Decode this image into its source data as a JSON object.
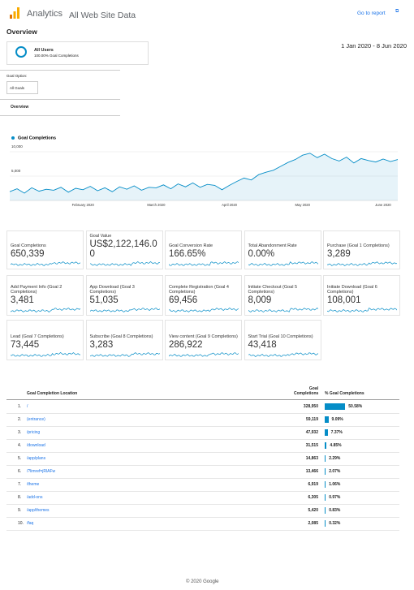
{
  "header": {
    "product": "Analytics",
    "property": "All Web Site Data",
    "link": "Go to report"
  },
  "page_title": "Overview",
  "segment": {
    "name": "All Users",
    "detail": "100.00% Goal Completions"
  },
  "date_range": "1 Jan 2020 - 8 Jun 2020",
  "goal_option": {
    "label": "Goal Option:",
    "value": "All Goals"
  },
  "tab": "Overview",
  "chart_data": {
    "type": "line",
    "categories": [
      null,
      null,
      null,
      null,
      null,
      null,
      null,
      null,
      null,
      null,
      "February 2020",
      null,
      null,
      null,
      null,
      null,
      null,
      null,
      null,
      null,
      "March 2020",
      null,
      null,
      null,
      null,
      null,
      null,
      null,
      null,
      null,
      "April 2020",
      null,
      null,
      null,
      null,
      null,
      null,
      null,
      null,
      null,
      "May 2020",
      null,
      null,
      null,
      null,
      null,
      null,
      null,
      null,
      null,
      null,
      "June 2020",
      null,
      null
    ],
    "series": [
      {
        "name": "Goal Completions",
        "color": "#058dc7",
        "values": [
          1800,
          2400,
          1500,
          2600,
          1900,
          2300,
          2100,
          2700,
          1700,
          2500,
          2200,
          2900,
          2000,
          2600,
          1800,
          2800,
          2300,
          3000,
          2100,
          2700,
          2600,
          3200,
          2400,
          3400,
          2800,
          3600,
          2700,
          3300,
          3100,
          2200,
          3100,
          3900,
          4600,
          4200,
          5300,
          5800,
          6200,
          7000,
          7800,
          8400,
          9300,
          9700,
          8800,
          9500,
          8600,
          8100,
          8900,
          7700,
          8600,
          8200,
          7900,
          8500,
          8000,
          8400
        ]
      }
    ],
    "ylim": [
      0,
      10000
    ],
    "yticks": [
      {
        "value": 5000,
        "label": "5,000"
      },
      {
        "value": 10000,
        "label": "10,000"
      }
    ],
    "grid": true
  },
  "scorecards": [
    {
      "title": "Goal Completions",
      "value": "650,339"
    },
    {
      "title": "Goal Value",
      "value": "US$2,122,146.00"
    },
    {
      "title": "Goal Conversion Rate",
      "value": "166.65%"
    },
    {
      "title": "Total Abandonment Rate",
      "value": "0.00%"
    },
    {
      "title": "Purchase (Goal 1 Completions)",
      "value": "3,289"
    },
    {
      "title": "Add Payment Info (Goal 2 Completions)",
      "value": "3,481"
    },
    {
      "title": "App Download (Goal 3 Completions)",
      "value": "51,035"
    },
    {
      "title": "Complete Registration (Goal 4 Completions)",
      "value": "69,456"
    },
    {
      "title": "Initiate Checkout (Goal 5 Completions)",
      "value": "8,009"
    },
    {
      "title": "Initiate Download (Goal 6 Completions)",
      "value": "108,001"
    },
    {
      "title": "Lead (Goal 7 Completions)",
      "value": "73,445"
    },
    {
      "title": "Subscribe (Goal 8 Completions)",
      "value": "3,283"
    },
    {
      "title": "View content (Goal 9 Completions)",
      "value": "286,922"
    },
    {
      "title": "Start Trial (Goal 10 Completions)",
      "value": "43,418"
    }
  ],
  "table": {
    "columns": [
      "Goal Completion Location",
      "Goal Completions",
      "% Goal Completions"
    ],
    "rows": [
      {
        "rank": "1.",
        "location": "/",
        "completions": "328,950",
        "percent": 50.58,
        "percent_label": "50.58%"
      },
      {
        "rank": "2.",
        "location": "(entrance)",
        "completions": "59,119",
        "percent": 9.09,
        "percent_label": "9.09%"
      },
      {
        "rank": "3.",
        "location": "/pricing",
        "completions": "47,932",
        "percent": 7.37,
        "percent_label": "7.37%"
      },
      {
        "rank": "4.",
        "location": "/download",
        "completions": "31,515",
        "percent": 4.85,
        "percent_label": "4.85%"
      },
      {
        "rank": "5.",
        "location": "/app/plans",
        "completions": "14,863",
        "percent": 2.29,
        "percent_label": "2.29%"
      },
      {
        "rank": "6.",
        "location": "/?limref=jRlAFw",
        "completions": "13,466",
        "percent": 2.07,
        "percent_label": "2.07%"
      },
      {
        "rank": "7.",
        "location": "/theme",
        "completions": "6,919",
        "percent": 1.06,
        "percent_label": "1.06%"
      },
      {
        "rank": "8.",
        "location": "/add-ons",
        "completions": "6,305",
        "percent": 0.97,
        "percent_label": "0.97%"
      },
      {
        "rank": "9.",
        "location": "/app/themes",
        "completions": "5,420",
        "percent": 0.83,
        "percent_label": "0.83%"
      },
      {
        "rank": "10.",
        "location": "/faq",
        "completions": "2,085",
        "percent": 0.32,
        "percent_label": "0.32%"
      }
    ]
  },
  "footer": "© 2020 Google"
}
